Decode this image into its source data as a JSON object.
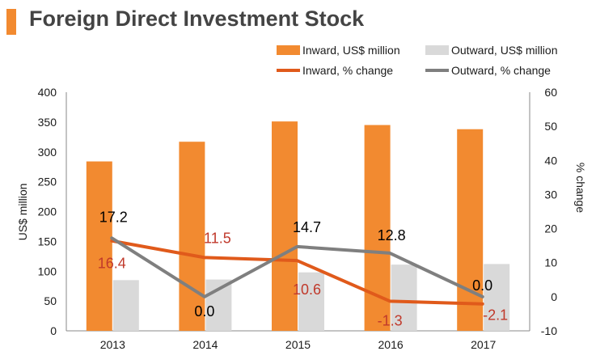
{
  "title": "Foreign Direct Investment Stock",
  "colors": {
    "accent": "#f28a30",
    "inward_bar": "#f28a30",
    "outward_bar": "#d9d9d9",
    "inward_line": "#e05a1b",
    "outward_line": "#7f7f7f",
    "inward_label": "#c0392b",
    "outward_label": "#000000",
    "axis": "#888888"
  },
  "chart_data": {
    "type": "bar",
    "categories": [
      "2013",
      "2014",
      "2015",
      "2016",
      "2017"
    ],
    "ylabel": "US$ million",
    "y2label": "% change",
    "ylim": [
      0,
      400
    ],
    "yticks": [
      "0",
      "50",
      "100",
      "150",
      "200",
      "250",
      "300",
      "350",
      "400"
    ],
    "y2lim": [
      -10,
      60
    ],
    "y2ticks": [
      "-10",
      "0",
      "10",
      "20",
      "30",
      "40",
      "50",
      "60"
    ],
    "legend_position": "top-right",
    "grid": false,
    "series": [
      {
        "name": "Inward, US$ million",
        "kind": "bar",
        "axis": "left",
        "values": [
          284,
          317,
          351,
          345,
          338
        ]
      },
      {
        "name": "Outward, US$ million",
        "kind": "bar",
        "axis": "left",
        "values": [
          85,
          86,
          98,
          111,
          112
        ]
      },
      {
        "name": "Inward, % change",
        "kind": "line",
        "axis": "right",
        "values": [
          16.4,
          11.5,
          10.6,
          -1.3,
          -2.1
        ],
        "labels": [
          "16.4",
          "11.5",
          "10.6",
          "-1.3",
          "-2.1"
        ]
      },
      {
        "name": "Outward, % change",
        "kind": "line",
        "axis": "right",
        "values": [
          17.2,
          0.0,
          14.7,
          12.8,
          0.0
        ],
        "labels": [
          "17.2",
          "0.0",
          "14.7",
          "12.8",
          "0.0"
        ]
      }
    ]
  }
}
